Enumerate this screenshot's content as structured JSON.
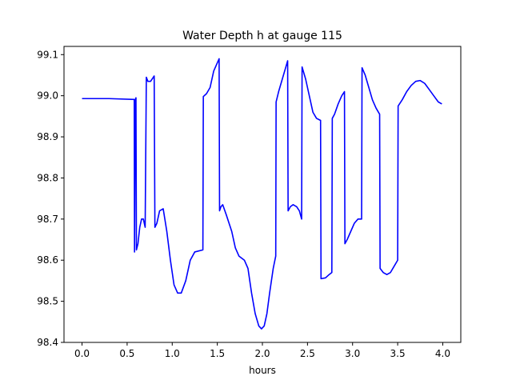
{
  "chart_data": {
    "type": "line",
    "title": "Water Depth h at gauge 115",
    "xlabel": "hours",
    "ylabel": "",
    "xlim": [
      -0.2,
      4.2
    ],
    "ylim": [
      98.4,
      99.12
    ],
    "grid": false,
    "xticks": [
      0.0,
      0.5,
      1.0,
      1.5,
      2.0,
      2.5,
      3.0,
      3.5,
      4.0
    ],
    "xtick_labels": [
      "0.0",
      "0.5",
      "1.0",
      "1.5",
      "2.0",
      "2.5",
      "3.0",
      "3.5",
      "4.0"
    ],
    "yticks": [
      98.4,
      98.5,
      98.6,
      98.7,
      98.8,
      98.9,
      99.0,
      99.1
    ],
    "ytick_labels": [
      "98.4",
      "98.5",
      "98.6",
      "98.7",
      "98.8",
      "98.9",
      "99.0",
      "99.1"
    ],
    "series": [
      {
        "color": "#0000ff",
        "points": [
          [
            0.0,
            98.993
          ],
          [
            0.3,
            98.993
          ],
          [
            0.579,
            98.991
          ],
          [
            0.582,
            98.62
          ],
          [
            0.59,
            98.99
          ],
          [
            0.598,
            98.995
          ],
          [
            0.603,
            98.625
          ],
          [
            0.62,
            98.64
          ],
          [
            0.64,
            98.68
          ],
          [
            0.66,
            98.7
          ],
          [
            0.68,
            98.7
          ],
          [
            0.7,
            98.68
          ],
          [
            0.713,
            99.045
          ],
          [
            0.73,
            99.035
          ],
          [
            0.76,
            99.035
          ],
          [
            0.8,
            99.048
          ],
          [
            0.808,
            98.68
          ],
          [
            0.83,
            98.69
          ],
          [
            0.86,
            98.72
          ],
          [
            0.9,
            98.725
          ],
          [
            0.94,
            98.67
          ],
          [
            0.98,
            98.6
          ],
          [
            1.02,
            98.54
          ],
          [
            1.06,
            98.52
          ],
          [
            1.1,
            98.52
          ],
          [
            1.15,
            98.55
          ],
          [
            1.2,
            98.6
          ],
          [
            1.25,
            98.62
          ],
          [
            1.34,
            98.625
          ],
          [
            1.345,
            98.998
          ],
          [
            1.38,
            99.005
          ],
          [
            1.42,
            99.02
          ],
          [
            1.46,
            99.06
          ],
          [
            1.52,
            99.09
          ],
          [
            1.525,
            98.72
          ],
          [
            1.54,
            98.73
          ],
          [
            1.56,
            98.735
          ],
          [
            1.6,
            98.71
          ],
          [
            1.66,
            98.67
          ],
          [
            1.7,
            98.63
          ],
          [
            1.74,
            98.61
          ],
          [
            1.8,
            98.6
          ],
          [
            1.84,
            98.58
          ],
          [
            1.88,
            98.52
          ],
          [
            1.92,
            98.47
          ],
          [
            1.96,
            98.44
          ],
          [
            1.99,
            98.433
          ],
          [
            2.02,
            98.44
          ],
          [
            2.05,
            98.47
          ],
          [
            2.08,
            98.52
          ],
          [
            2.12,
            98.58
          ],
          [
            2.148,
            98.61
          ],
          [
            2.152,
            98.985
          ],
          [
            2.18,
            99.01
          ],
          [
            2.22,
            99.04
          ],
          [
            2.26,
            99.07
          ],
          [
            2.28,
            99.085
          ],
          [
            2.285,
            98.72
          ],
          [
            2.31,
            98.73
          ],
          [
            2.34,
            98.735
          ],
          [
            2.38,
            98.73
          ],
          [
            2.41,
            98.72
          ],
          [
            2.435,
            98.7
          ],
          [
            2.44,
            99.07
          ],
          [
            2.48,
            99.04
          ],
          [
            2.52,
            99.0
          ],
          [
            2.56,
            98.96
          ],
          [
            2.6,
            98.945
          ],
          [
            2.645,
            98.94
          ],
          [
            2.65,
            98.555
          ],
          [
            2.7,
            98.557
          ],
          [
            2.74,
            98.565
          ],
          [
            2.77,
            98.57
          ],
          [
            2.775,
            98.945
          ],
          [
            2.8,
            98.955
          ],
          [
            2.84,
            98.98
          ],
          [
            2.88,
            99.0
          ],
          [
            2.91,
            99.01
          ],
          [
            2.915,
            98.64
          ],
          [
            2.94,
            98.65
          ],
          [
            2.98,
            98.67
          ],
          [
            3.02,
            98.69
          ],
          [
            3.06,
            98.7
          ],
          [
            3.1,
            98.7
          ],
          [
            3.105,
            99.068
          ],
          [
            3.14,
            99.05
          ],
          [
            3.18,
            99.02
          ],
          [
            3.22,
            98.99
          ],
          [
            3.26,
            98.97
          ],
          [
            3.3,
            98.955
          ],
          [
            3.305,
            98.58
          ],
          [
            3.34,
            98.57
          ],
          [
            3.38,
            98.565
          ],
          [
            3.42,
            98.57
          ],
          [
            3.46,
            98.585
          ],
          [
            3.5,
            98.6
          ],
          [
            3.505,
            98.975
          ],
          [
            3.55,
            98.99
          ],
          [
            3.6,
            99.01
          ],
          [
            3.65,
            99.025
          ],
          [
            3.7,
            99.035
          ],
          [
            3.75,
            99.037
          ],
          [
            3.8,
            99.03
          ],
          [
            3.85,
            99.015
          ],
          [
            3.9,
            99.0
          ],
          [
            3.95,
            98.985
          ],
          [
            3.99,
            98.98
          ]
        ]
      }
    ]
  }
}
